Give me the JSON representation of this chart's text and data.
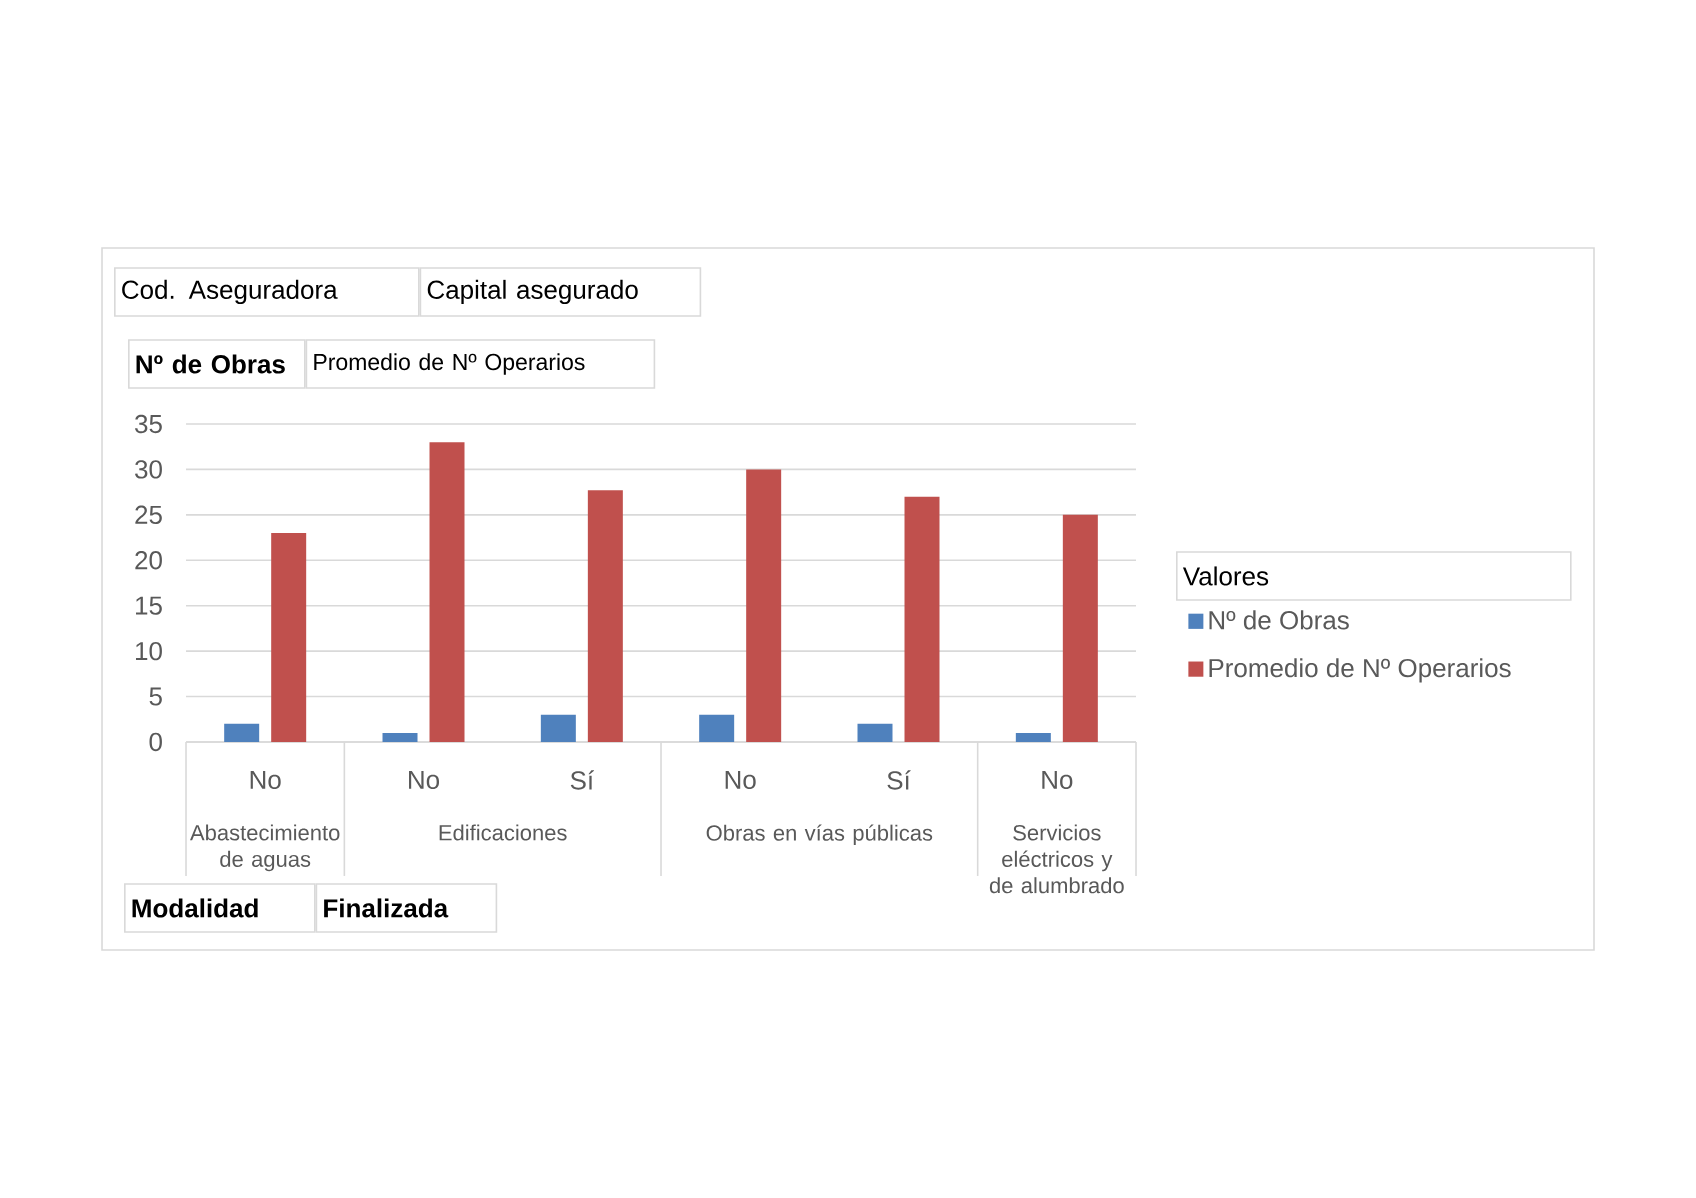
{
  "chart_data": {
    "type": "bar",
    "categories": [
      "No",
      "No",
      "Sí",
      "No",
      "Sí",
      "No"
    ],
    "series": [
      {
        "name": "Nº de Obras",
        "color": "#4f81bd",
        "values": [
          2,
          1,
          3,
          3,
          2,
          1
        ]
      },
      {
        "name": "Promedio de Nº Operarios",
        "color": "#c0504d",
        "values": [
          23,
          33,
          27.7,
          30,
          27,
          25
        ]
      }
    ],
    "ylim": [
      0,
      35
    ],
    "yticks": [
      0,
      5,
      10,
      15,
      20,
      25,
      30,
      35
    ],
    "grid": "y",
    "legend": "right",
    "legend_title": "Valores",
    "annotations": [
      "Cod. Aseguradora",
      "Capital asegurado",
      "Nº de Obras",
      "Promedio de Nº Operarios",
      "Modalidad",
      "Finalizada",
      "Abastecimiento de aguas",
      "Edificaciones",
      "Obras en vías públicas",
      "Servicios eléctricos y de alumbrado"
    ]
  }
}
